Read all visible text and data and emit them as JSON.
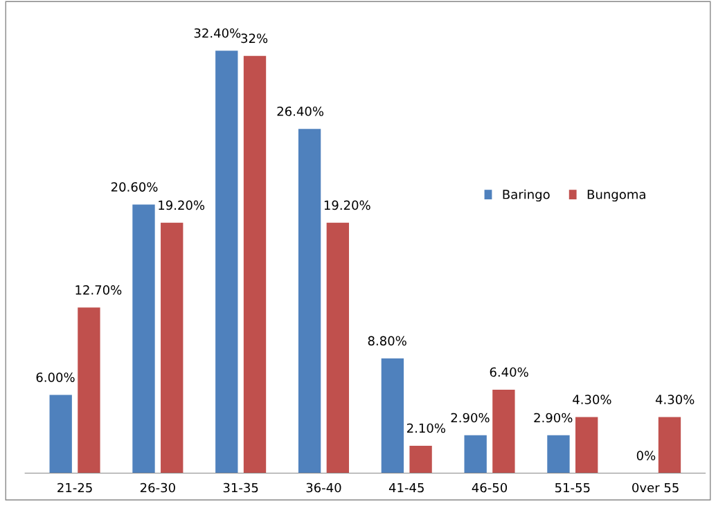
{
  "chart_data": {
    "type": "bar",
    "categories": [
      "21-25",
      "26-30",
      "31-35",
      "36-40",
      "41-45",
      "46-50",
      "51-55",
      "0ver 55"
    ],
    "series": [
      {
        "name": "Baringo",
        "color": "#4f81bd",
        "values": [
          6.0,
          20.6,
          32.4,
          26.4,
          8.8,
          2.9,
          2.9,
          0
        ],
        "value_labels": [
          "6.00%",
          "20.60%",
          "32.40%",
          "26.40%",
          "8.80%",
          "2.90%",
          "2.90%",
          "0%"
        ]
      },
      {
        "name": "Bungoma",
        "color": "#c0504d",
        "values": [
          12.7,
          19.2,
          32,
          19.2,
          2.1,
          6.4,
          4.3,
          4.3
        ],
        "value_labels": [
          "12.70%",
          "19.20%",
          "32%",
          "19.20%",
          "2.10%",
          "6.40%",
          "4.30%",
          "4.30%"
        ]
      }
    ],
    "legend": "right",
    "grid": false
  }
}
